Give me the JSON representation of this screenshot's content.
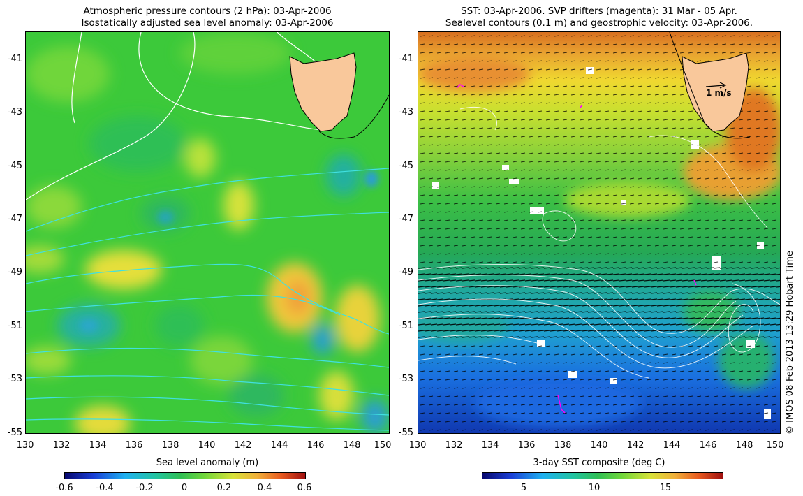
{
  "left_panel": {
    "title_line1": "Atmospheric pressure contours (2 hPa): 03-Apr-2006",
    "title_line2": "Isostatically adjusted sea level anomaly: 03-Apr-2006",
    "lat_ticks": [
      "-41",
      "-43",
      "-45",
      "-47",
      "-49",
      "-51",
      "-53",
      "-55"
    ],
    "lon_ticks": [
      "130",
      "132",
      "134",
      "136",
      "138",
      "140",
      "142",
      "144",
      "146",
      "148",
      "150"
    ],
    "colorbar_title": "Sea level anomaly (m)",
    "colorbar_ticks": [
      "-0.6",
      "-0.4",
      "-0.2",
      "0",
      "0.2",
      "0.4",
      "0.6"
    ],
    "colorbar_range": [
      -0.6,
      0.6
    ]
  },
  "right_panel": {
    "title_line1": "SST: 03-Apr-2006. SVP drifters (magenta): 31 Mar - 05 Apr.",
    "title_line2": "Sealevel contours (0.1 m) and geostrophic velocity: 03-Apr-2006.",
    "lat_ticks": [
      "-41",
      "-43",
      "-45",
      "-47",
      "-49",
      "-51",
      "-53",
      "-55"
    ],
    "lon_ticks": [
      "130",
      "132",
      "134",
      "136",
      "138",
      "140",
      "142",
      "144",
      "146",
      "148",
      "150"
    ],
    "velocity_scale_label": "1 m/s",
    "colorbar_title": "3-day SST composite (deg C)",
    "colorbar_ticks": [
      "5",
      "10",
      "15"
    ],
    "colorbar_range": [
      2,
      19
    ]
  },
  "credit": "© IMOS 08-Feb-2013 13:29 Hobart Time",
  "map_extent": {
    "lon": [
      130,
      150
    ],
    "lat": [
      -55,
      -40
    ]
  },
  "colors": {
    "land": "#f9c89b",
    "coastline": "#000000",
    "pressure_contour_white": "#ffffff",
    "pressure_contour_cyan": "#40e0e0",
    "drifter": "#ff00ff",
    "vector": "#000000"
  }
}
